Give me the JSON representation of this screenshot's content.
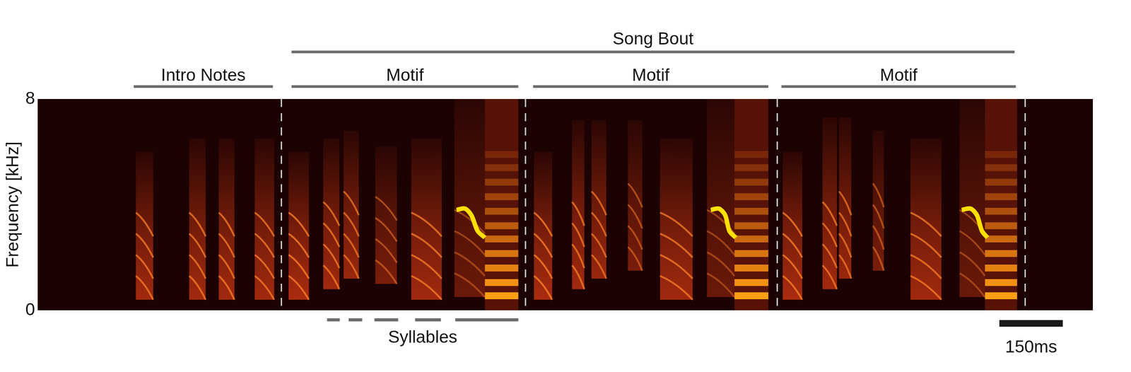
{
  "chart_data": {
    "type": "spectrogram",
    "y_label": "Frequency [kHz]",
    "xlim": [
      0,
      2494
    ],
    "ylim": [
      0,
      8
    ],
    "yticks": [
      0,
      8
    ],
    "tick_labels": "y",
    "grid": false,
    "color": "#e03c14",
    "notes": [
      {
        "start": 232,
        "end": 273,
        "low": 0.4,
        "high": 6.0,
        "level": 0.85
      },
      {
        "start": 358,
        "end": 397,
        "low": 0.4,
        "high": 6.5,
        "level": 0.85
      },
      {
        "start": 428,
        "end": 465,
        "low": 0.4,
        "high": 6.5,
        "level": 0.85
      },
      {
        "start": 513,
        "end": 559,
        "low": 0.4,
        "high": 6.5,
        "level": 0.85
      },
      {
        "start": 593,
        "end": 641,
        "low": 0.4,
        "high": 6.0,
        "level": 0.9
      },
      {
        "start": 675,
        "end": 713,
        "low": 0.8,
        "high": 6.5,
        "level": 0.85
      },
      {
        "start": 723,
        "end": 759,
        "low": 1.2,
        "high": 6.8,
        "level": 0.8
      },
      {
        "start": 798,
        "end": 849,
        "low": 1.0,
        "high": 6.2,
        "level": 0.6
      },
      {
        "start": 883,
        "end": 955,
        "low": 0.4,
        "high": 6.5,
        "level": 0.85
      },
      {
        "start": 985,
        "end": 1057,
        "low": 0.5,
        "high": 8.0,
        "level": 0.5
      },
      {
        "start": 1173,
        "end": 1216,
        "low": 0.4,
        "high": 6.0,
        "level": 0.9
      },
      {
        "start": 1263,
        "end": 1292,
        "low": 0.8,
        "high": 7.2,
        "level": 0.85
      },
      {
        "start": 1309,
        "end": 1344,
        "low": 1.2,
        "high": 7.2,
        "level": 0.8
      },
      {
        "start": 1395,
        "end": 1429,
        "low": 1.5,
        "high": 7.2,
        "level": 0.6
      },
      {
        "start": 1471,
        "end": 1548,
        "low": 0.4,
        "high": 6.5,
        "level": 0.85
      },
      {
        "start": 1582,
        "end": 1647,
        "low": 0.5,
        "high": 8.0,
        "level": 0.5
      },
      {
        "start": 1761,
        "end": 1807,
        "low": 0.4,
        "high": 6.0,
        "level": 0.9
      },
      {
        "start": 1855,
        "end": 1889,
        "low": 0.8,
        "high": 7.3,
        "level": 0.85
      },
      {
        "start": 1894,
        "end": 1923,
        "low": 1.2,
        "high": 7.3,
        "level": 0.8
      },
      {
        "start": 1974,
        "end": 2000,
        "low": 1.5,
        "high": 6.8,
        "level": 0.6
      },
      {
        "start": 2063,
        "end": 2136,
        "low": 0.4,
        "high": 6.5,
        "level": 0.85
      },
      {
        "start": 2179,
        "end": 2239,
        "low": 0.5,
        "high": 8.0,
        "level": 0.5
      }
    ],
    "stacks": [
      {
        "start": 1057,
        "end": 1136,
        "harmonics": [
          0.55,
          1.05,
          1.6,
          2.15,
          2.7,
          3.2,
          3.75,
          4.3,
          4.85,
          5.4,
          5.9
        ]
      },
      {
        "start": 1647,
        "end": 1727,
        "harmonics": [
          0.55,
          1.05,
          1.6,
          2.15,
          2.7,
          3.2,
          3.75,
          4.3,
          4.85,
          5.4,
          5.9
        ]
      },
      {
        "start": 2239,
        "end": 2315,
        "harmonics": [
          0.55,
          1.05,
          1.6,
          2.15,
          2.7,
          3.2,
          3.75,
          4.3,
          4.85,
          5.4,
          5.9
        ]
      }
    ],
    "sweeps": [
      {
        "color": "#ffe000",
        "x": [
          990,
          1010,
          1025,
          1040,
          1057
        ],
        "y": [
          3.8,
          3.85,
          3.6,
          3.0,
          2.75
        ]
      },
      {
        "color": "#ffe000",
        "x": [
          1591,
          1610,
          1625,
          1635,
          1650
        ],
        "y": [
          3.8,
          3.85,
          3.6,
          3.0,
          2.75
        ]
      },
      {
        "color": "#ffe000",
        "x": [
          2184,
          2205,
          2220,
          2232,
          2245
        ],
        "y": [
          3.8,
          3.85,
          3.6,
          3.0,
          2.75
        ]
      }
    ],
    "boundaries": [
      576,
      1153,
      1748,
      2334
    ],
    "song_bout": {
      "label": "Song Bout",
      "start": 600,
      "end": 2309
    },
    "segments": [
      {
        "label": "Intro Notes",
        "start": 227,
        "end": 556
      },
      {
        "label": "Motif",
        "start": 600,
        "end": 1136
      },
      {
        "label": "Motif",
        "start": 1171,
        "end": 1727
      },
      {
        "label": "Motif",
        "start": 1758,
        "end": 2312
      }
    ],
    "syllables": {
      "label": "Syllables",
      "segments": [
        [
          684,
          714
        ],
        [
          735,
          767
        ],
        [
          796,
          852
        ],
        [
          892,
          953
        ],
        [
          987,
          1136
        ]
      ]
    },
    "scale_bar": {
      "label": "150ms",
      "start": 2273,
      "length": 150
    }
  }
}
